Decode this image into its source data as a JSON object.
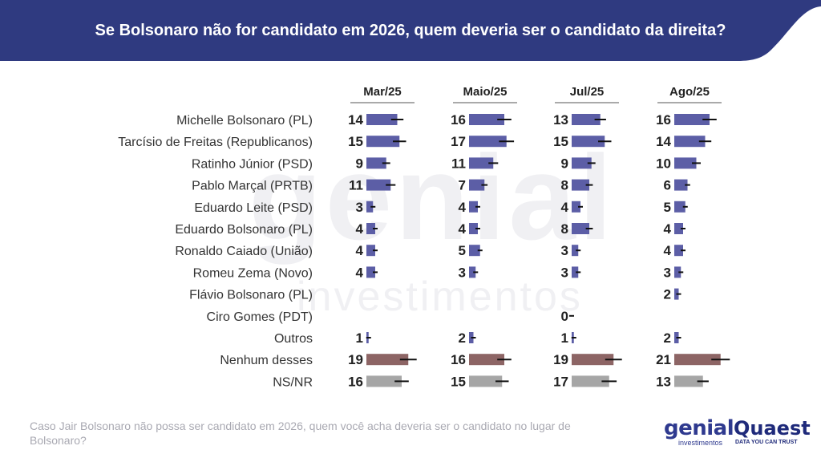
{
  "title": "Se Bolsonaro não for candidato em 2026, quem deveria ser o candidato da direita?",
  "footnote": "Caso Jair Bolsonaro não possa ser candidato em 2026, quem você acha deveria ser o candidato no lugar de Bolsonaro?",
  "logos": {
    "genial_main": "genial",
    "genial_sub": "investimentos",
    "quaest_main": "Quaest",
    "quaest_sub": "DATA YOU CAN TRUST"
  },
  "watermark": {
    "main": "genial",
    "sub": "investimentos"
  },
  "colors": {
    "header": "#2f3a80",
    "candidate_bar": "#5c5ea6",
    "none_bar": "#8d6565",
    "nsnr_bar": "#a6a6a6",
    "error_bar": "#111111"
  },
  "chart_data": {
    "type": "bar",
    "orientation": "horizontal",
    "categories": [
      "Michelle Bolsonaro (PL)",
      "Tarcísio de Freitas (Republicanos)",
      "Ratinho Júnior (PSD)",
      "Pablo Marçal (PRTB)",
      "Eduardo Leite (PSD)",
      "Eduardo Bolsonaro (PL)",
      "Ronaldo Caiado (União)",
      "Romeu Zema (Novo)",
      "Flávio Bolsonaro (PL)",
      "Ciro Gomes (PDT)",
      "Outros",
      "Nenhum desses",
      "NS/NR"
    ],
    "series": [
      {
        "name": "Mar/25",
        "values": [
          14,
          15,
          9,
          11,
          3,
          4,
          4,
          4,
          null,
          null,
          1,
          19,
          16
        ]
      },
      {
        "name": "Maio/25",
        "values": [
          16,
          17,
          11,
          7,
          4,
          4,
          5,
          3,
          null,
          null,
          2,
          16,
          15
        ]
      },
      {
        "name": "Jul/25",
        "values": [
          13,
          15,
          9,
          8,
          4,
          8,
          3,
          3,
          null,
          0,
          1,
          19,
          17
        ]
      },
      {
        "name": "Ago/25",
        "values": [
          16,
          14,
          10,
          6,
          5,
          4,
          4,
          3,
          2,
          null,
          2,
          21,
          13
        ]
      }
    ],
    "error_bars": true,
    "xlim": [
      0,
      25
    ]
  }
}
